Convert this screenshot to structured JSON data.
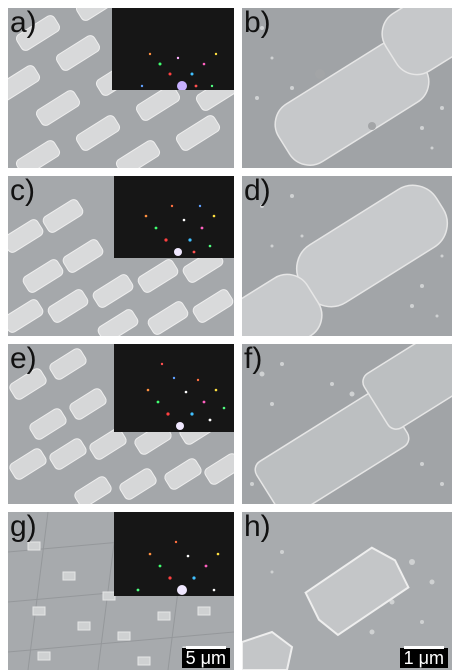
{
  "panels": [
    {
      "id": "a",
      "label": "a)",
      "has_inset": true
    },
    {
      "id": "b",
      "label": "b)",
      "has_inset": false
    },
    {
      "id": "c",
      "label": "c)",
      "has_inset": true
    },
    {
      "id": "d",
      "label": "d)",
      "has_inset": false
    },
    {
      "id": "e",
      "label": "e)",
      "has_inset": true
    },
    {
      "id": "f",
      "label": "f)",
      "has_inset": false
    },
    {
      "id": "g",
      "label": "g)",
      "has_inset": true
    },
    {
      "id": "h",
      "label": "h)",
      "has_inset": false
    }
  ],
  "scale_bars": {
    "left": "5 μm",
    "right": "1 μm"
  },
  "colors": {
    "substrate": "#a3a6a9",
    "pad": "#d6d7d8",
    "inset_bg": "#161616"
  }
}
